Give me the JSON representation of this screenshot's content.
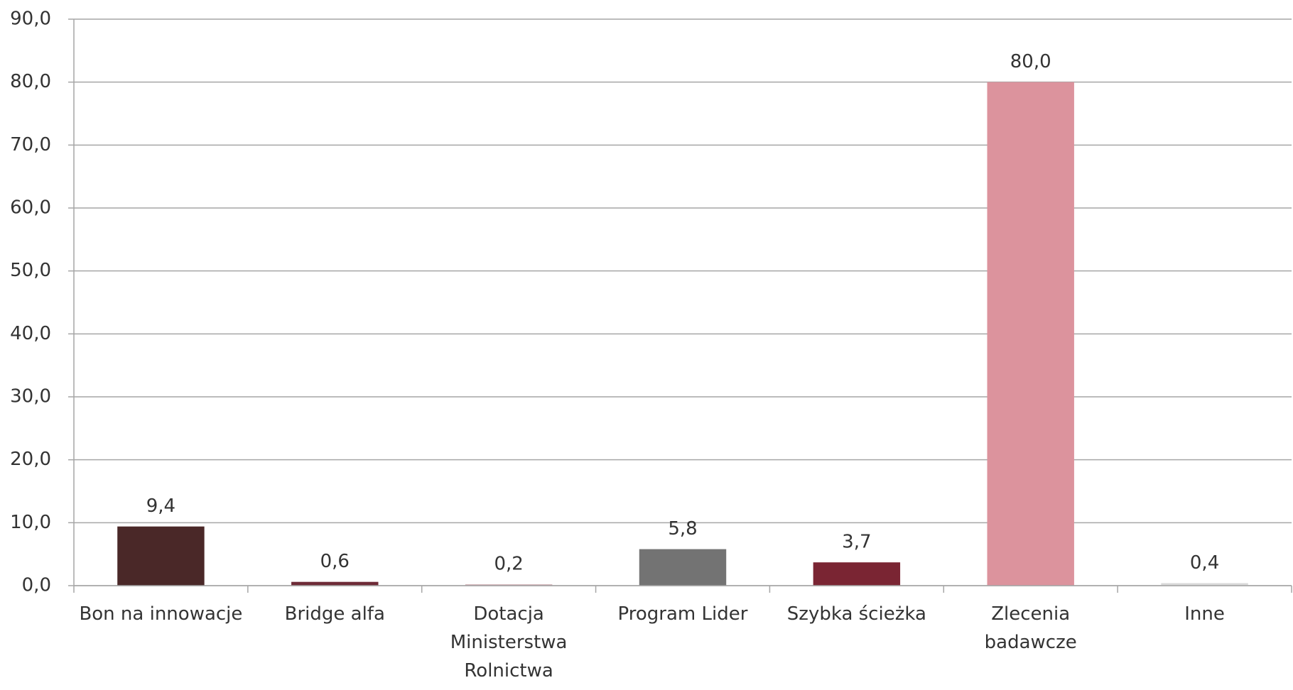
{
  "chart_data": {
    "type": "bar",
    "categories": [
      "Bon na innowacje",
      "Bridge alfa",
      "Dotacja Ministerstwa Rolnictwa",
      "Program Lider",
      "Szybka ścieżka",
      "Zlecenia badawcze",
      "Inne"
    ],
    "values": [
      9.4,
      0.6,
      0.2,
      5.8,
      3.7,
      80.0,
      0.4
    ],
    "value_labels": [
      "9,4",
      "0,6",
      "0,2",
      "5,8",
      "3,7",
      "80,0",
      "0,4"
    ],
    "colors": [
      "#4a2828",
      "#6e2a36",
      "#c9a3aa",
      "#737373",
      "#7a2533",
      "#dc939d",
      "#d9d9d9"
    ],
    "ylim": [
      0,
      90
    ],
    "yticks": [
      {
        "value": 0,
        "label": "0,0"
      },
      {
        "value": 10,
        "label": "10,0"
      },
      {
        "value": 20,
        "label": "20,0"
      },
      {
        "value": 30,
        "label": "30,0"
      },
      {
        "value": 40,
        "label": "40,0"
      },
      {
        "value": 50,
        "label": "50,0"
      },
      {
        "value": 60,
        "label": "60,0"
      },
      {
        "value": 70,
        "label": "70,0"
      },
      {
        "value": 80,
        "label": "80,0"
      },
      {
        "value": 90,
        "label": "90,0"
      }
    ],
    "grid": true
  }
}
